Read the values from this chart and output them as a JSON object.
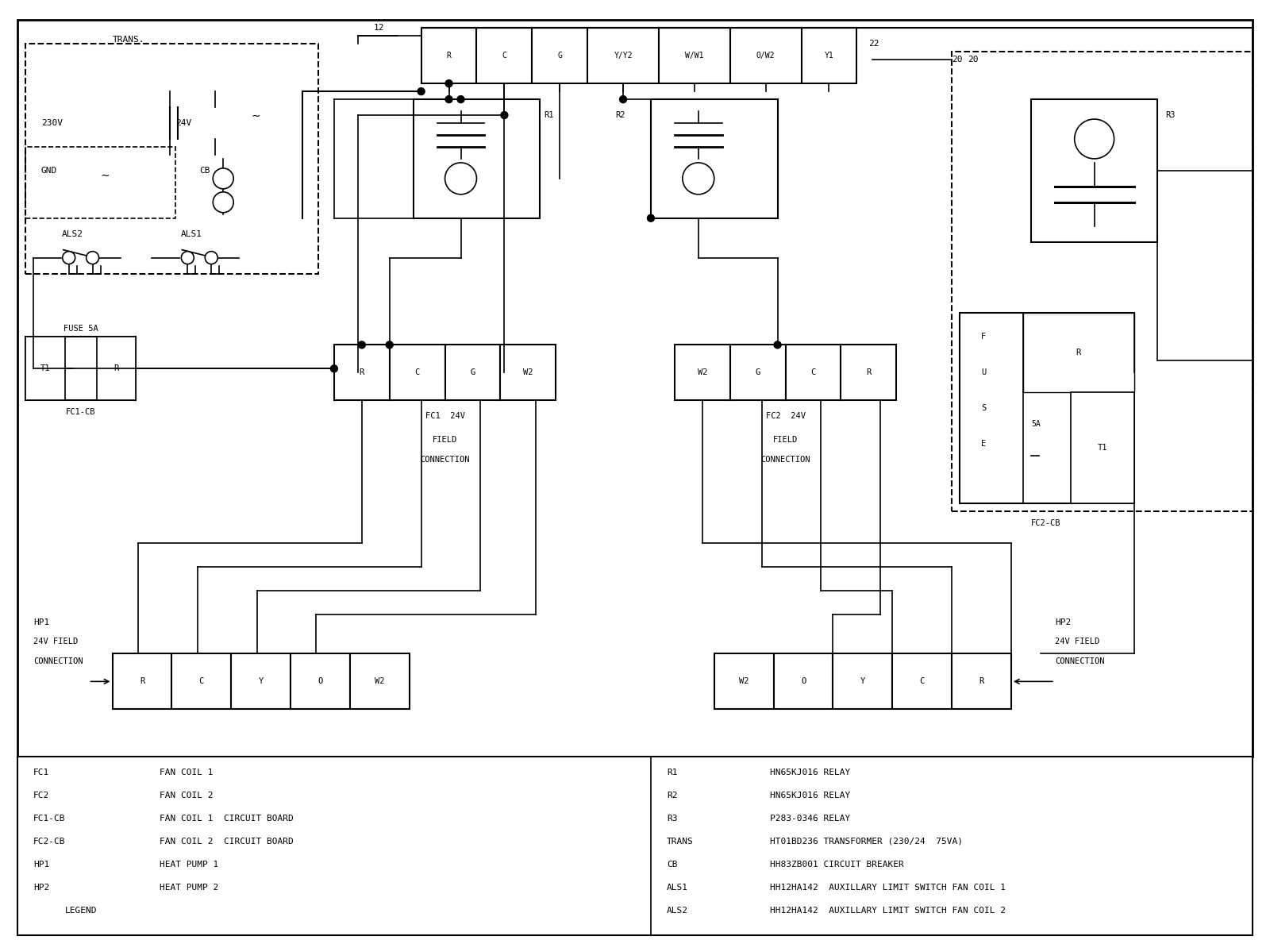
{
  "bg_color": "#ffffff",
  "line_color": "#000000",
  "legend_entries_left": [
    [
      "FC1",
      "FAN COIL 1"
    ],
    [
      "FC2",
      "FAN COIL 2"
    ],
    [
      "FC1-CB",
      "FAN COIL 1  CIRCUIT BOARD"
    ],
    [
      "FC2-CB",
      "FAN COIL 2  CIRCUIT BOARD"
    ],
    [
      "HP1",
      "HEAT PUMP 1"
    ],
    [
      "HP2",
      "HEAT PUMP 2"
    ],
    [
      "LEGEND",
      ""
    ]
  ],
  "legend_entries_right": [
    [
      "R1",
      "HN65KJ016 RELAY"
    ],
    [
      "R2",
      "HN65KJ016 RELAY"
    ],
    [
      "R3",
      "P283-0346 RELAY"
    ],
    [
      "TRANS",
      "HT01BD236 TRANSFORMER (230/24  75VA)"
    ],
    [
      "CB",
      "HH83ZB001 CIRCUIT BREAKER"
    ],
    [
      "ALS1",
      "HH12HA142  AUXILLARY LIMIT SWITCH FAN COIL 1"
    ],
    [
      "ALS2",
      "HH12HA142  AUXILLARY LIMIT SWITCH FAN COIL 2"
    ]
  ],
  "thermostat_labels": [
    "R",
    "C",
    "G",
    "Y/Y2",
    "W/W1",
    "O/W2",
    "Y1"
  ],
  "thermostat_widths": [
    7,
    7,
    7,
    9,
    9,
    9,
    7
  ],
  "fc1_connector": [
    "R",
    "C",
    "G",
    "W2"
  ],
  "fc2_connector": [
    "W2",
    "G",
    "C",
    "R"
  ],
  "hp1_connector": [
    "R",
    "C",
    "Y",
    "O",
    "W2"
  ],
  "hp2_connector": [
    "W2",
    "O",
    "Y",
    "C",
    "R"
  ]
}
